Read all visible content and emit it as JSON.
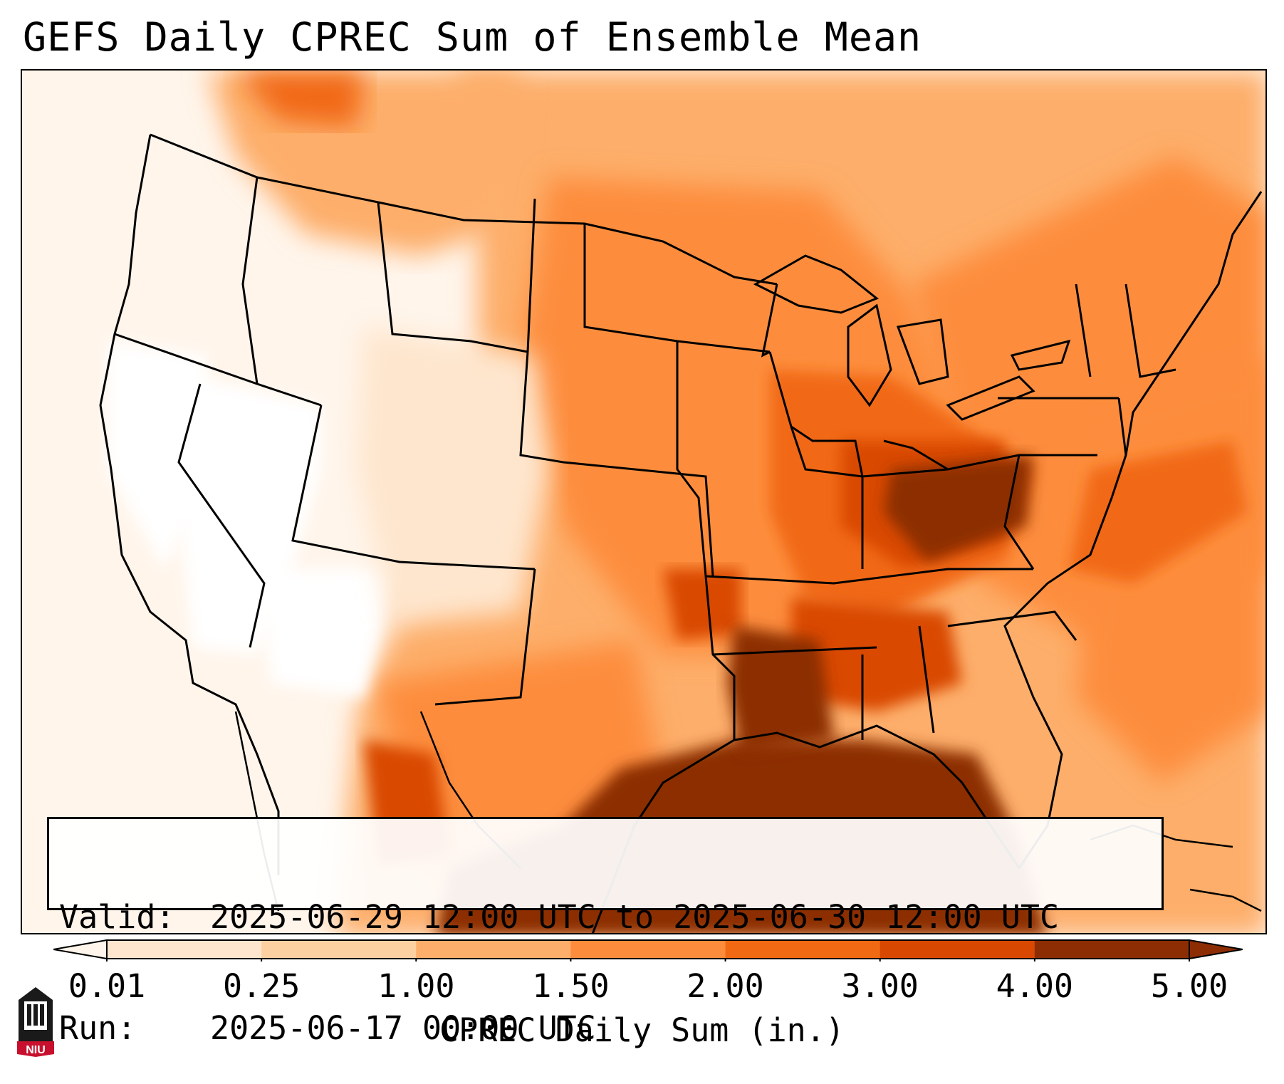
{
  "title": "GEFS Daily CPREC Sum of Ensemble Mean",
  "info": {
    "valid_label": "Valid:",
    "valid_value": "2025-06-29 12:00 UTC to 2025-06-30 12:00 UTC",
    "run_label": "Run:",
    "run_value": "2025-06-17 00:00 UTC"
  },
  "colorbar": {
    "label": "CPREC Daily Sum (in.)",
    "ticks": [
      "0.01",
      "0.25",
      "1.00",
      "1.50",
      "2.00",
      "3.00",
      "4.00",
      "5.00"
    ],
    "colors": [
      "#fff5eb",
      "#fee6ce",
      "#fdd0a2",
      "#fdae6b",
      "#fd8d3c",
      "#f16913",
      "#d94801",
      "#8c2d04"
    ],
    "extend": "both"
  },
  "map": {
    "projection": "Lambert Conformal, CONUS",
    "background_color": "#fff5eb",
    "dry_color": "#ffffff",
    "boundaries_color": "#000000"
  },
  "logo": {
    "text": "NIU",
    "icon": "niu-tower-logo"
  }
}
